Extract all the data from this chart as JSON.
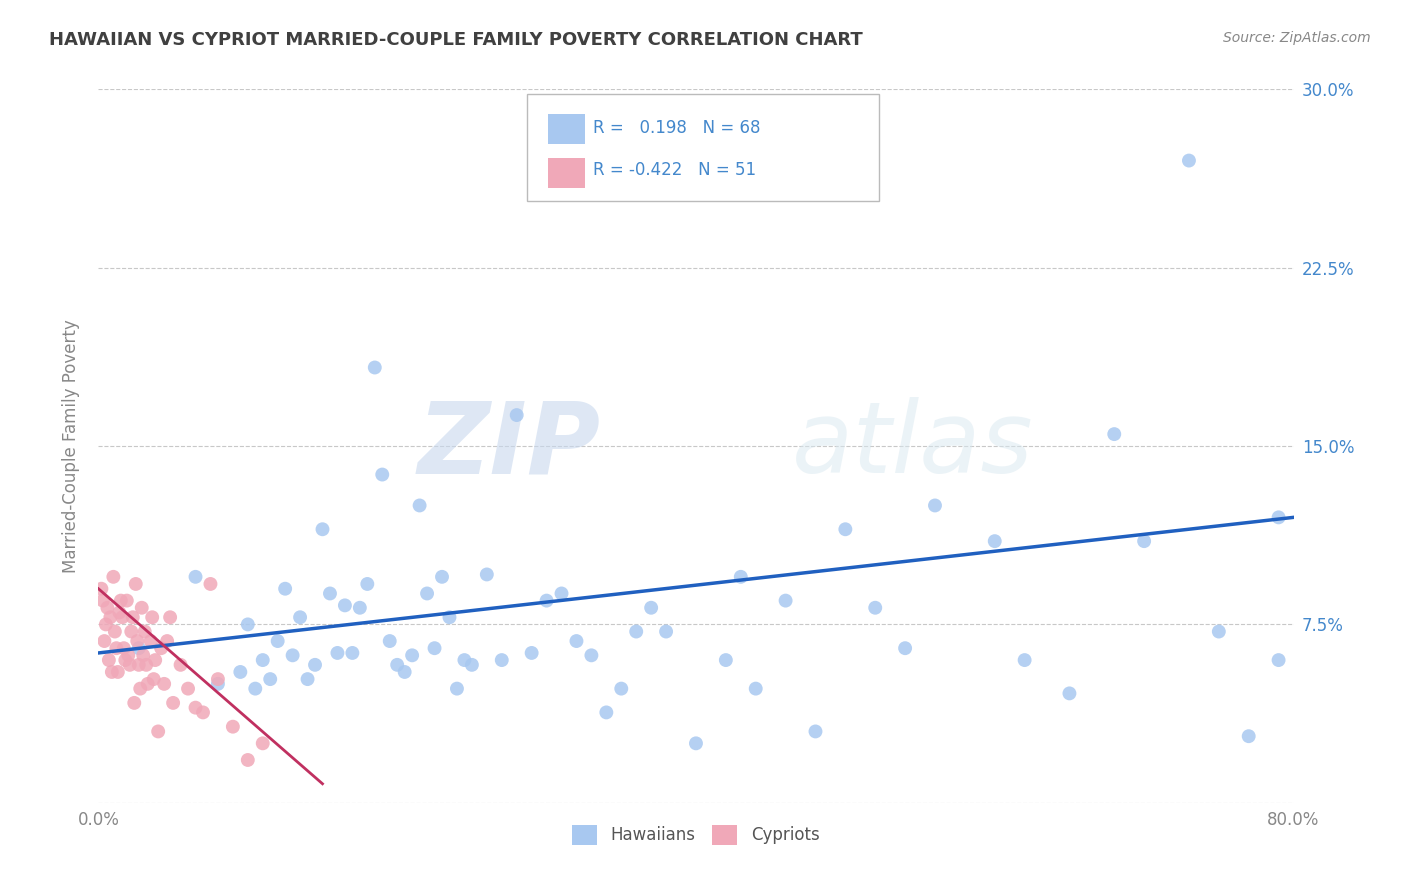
{
  "title": "HAWAIIAN VS CYPRIOT MARRIED-COUPLE FAMILY POVERTY CORRELATION CHART",
  "source": "Source: ZipAtlas.com",
  "ylabel": "Married-Couple Family Poverty",
  "watermark": "ZIPatlas",
  "xlim": [
    0.0,
    0.8
  ],
  "ylim": [
    0.0,
    0.3
  ],
  "xticks": [
    0.0,
    0.1,
    0.2,
    0.3,
    0.4,
    0.5,
    0.6,
    0.7,
    0.8
  ],
  "xticklabels": [
    "0.0%",
    "",
    "",
    "",
    "",
    "",
    "",
    "",
    "80.0%"
  ],
  "yticks": [
    0.0,
    0.075,
    0.15,
    0.225,
    0.3
  ],
  "yticklabels": [
    "",
    "7.5%",
    "15.0%",
    "22.5%",
    "30.0%"
  ],
  "legend_r_hawaiian": " 0.198",
  "legend_n_hawaiian": "68",
  "legend_r_cypriot": "-0.422",
  "legend_n_cypriot": "51",
  "hawaiian_color": "#a8c8f0",
  "cypriot_color": "#f0a8b8",
  "trend_hawaiian_color": "#2060c0",
  "trend_cypriot_color": "#c03060",
  "background_color": "#ffffff",
  "grid_color": "#c8c8c8",
  "title_color": "#404040",
  "right_tick_color": "#4488cc",
  "axis_tick_color": "#888888",
  "hawaiians_x": [
    0.027,
    0.065,
    0.08,
    0.095,
    0.1,
    0.105,
    0.11,
    0.115,
    0.12,
    0.125,
    0.13,
    0.135,
    0.14,
    0.145,
    0.15,
    0.155,
    0.16,
    0.165,
    0.17,
    0.175,
    0.18,
    0.185,
    0.19,
    0.195,
    0.2,
    0.205,
    0.21,
    0.215,
    0.22,
    0.225,
    0.23,
    0.235,
    0.24,
    0.245,
    0.25,
    0.26,
    0.27,
    0.28,
    0.29,
    0.3,
    0.31,
    0.32,
    0.33,
    0.34,
    0.35,
    0.36,
    0.37,
    0.38,
    0.4,
    0.42,
    0.43,
    0.44,
    0.46,
    0.48,
    0.5,
    0.52,
    0.54,
    0.56,
    0.6,
    0.62,
    0.65,
    0.68,
    0.7,
    0.73,
    0.75,
    0.77,
    0.79,
    0.79
  ],
  "hawaiians_y": [
    0.065,
    0.095,
    0.05,
    0.055,
    0.075,
    0.048,
    0.06,
    0.052,
    0.068,
    0.09,
    0.062,
    0.078,
    0.052,
    0.058,
    0.115,
    0.088,
    0.063,
    0.083,
    0.063,
    0.082,
    0.092,
    0.183,
    0.138,
    0.068,
    0.058,
    0.055,
    0.062,
    0.125,
    0.088,
    0.065,
    0.095,
    0.078,
    0.048,
    0.06,
    0.058,
    0.096,
    0.06,
    0.163,
    0.063,
    0.085,
    0.088,
    0.068,
    0.062,
    0.038,
    0.048,
    0.072,
    0.082,
    0.072,
    0.025,
    0.06,
    0.095,
    0.048,
    0.085,
    0.03,
    0.115,
    0.082,
    0.065,
    0.125,
    0.11,
    0.06,
    0.046,
    0.155,
    0.11,
    0.27,
    0.072,
    0.028,
    0.06,
    0.12
  ],
  "cypriots_x": [
    0.002,
    0.003,
    0.004,
    0.005,
    0.006,
    0.007,
    0.008,
    0.009,
    0.01,
    0.011,
    0.012,
    0.013,
    0.014,
    0.015,
    0.016,
    0.017,
    0.018,
    0.019,
    0.02,
    0.021,
    0.022,
    0.023,
    0.024,
    0.025,
    0.026,
    0.027,
    0.028,
    0.029,
    0.03,
    0.031,
    0.032,
    0.033,
    0.035,
    0.036,
    0.037,
    0.038,
    0.04,
    0.042,
    0.044,
    0.046,
    0.048,
    0.05,
    0.055,
    0.06,
    0.065,
    0.07,
    0.075,
    0.08,
    0.09,
    0.1,
    0.11
  ],
  "cypriots_y": [
    0.09,
    0.085,
    0.068,
    0.075,
    0.082,
    0.06,
    0.078,
    0.055,
    0.095,
    0.072,
    0.065,
    0.055,
    0.08,
    0.085,
    0.078,
    0.065,
    0.06,
    0.085,
    0.062,
    0.058,
    0.072,
    0.078,
    0.042,
    0.092,
    0.068,
    0.058,
    0.048,
    0.082,
    0.062,
    0.072,
    0.058,
    0.05,
    0.068,
    0.078,
    0.052,
    0.06,
    0.03,
    0.065,
    0.05,
    0.068,
    0.078,
    0.042,
    0.058,
    0.048,
    0.04,
    0.038,
    0.092,
    0.052,
    0.032,
    0.018,
    0.025
  ],
  "trend_h_x0": 0.0,
  "trend_h_x1": 0.8,
  "trend_h_y0": 0.063,
  "trend_h_y1": 0.12,
  "trend_c_x0": 0.0,
  "trend_c_x1": 0.15,
  "trend_c_y0": 0.09,
  "trend_c_y1": 0.008
}
